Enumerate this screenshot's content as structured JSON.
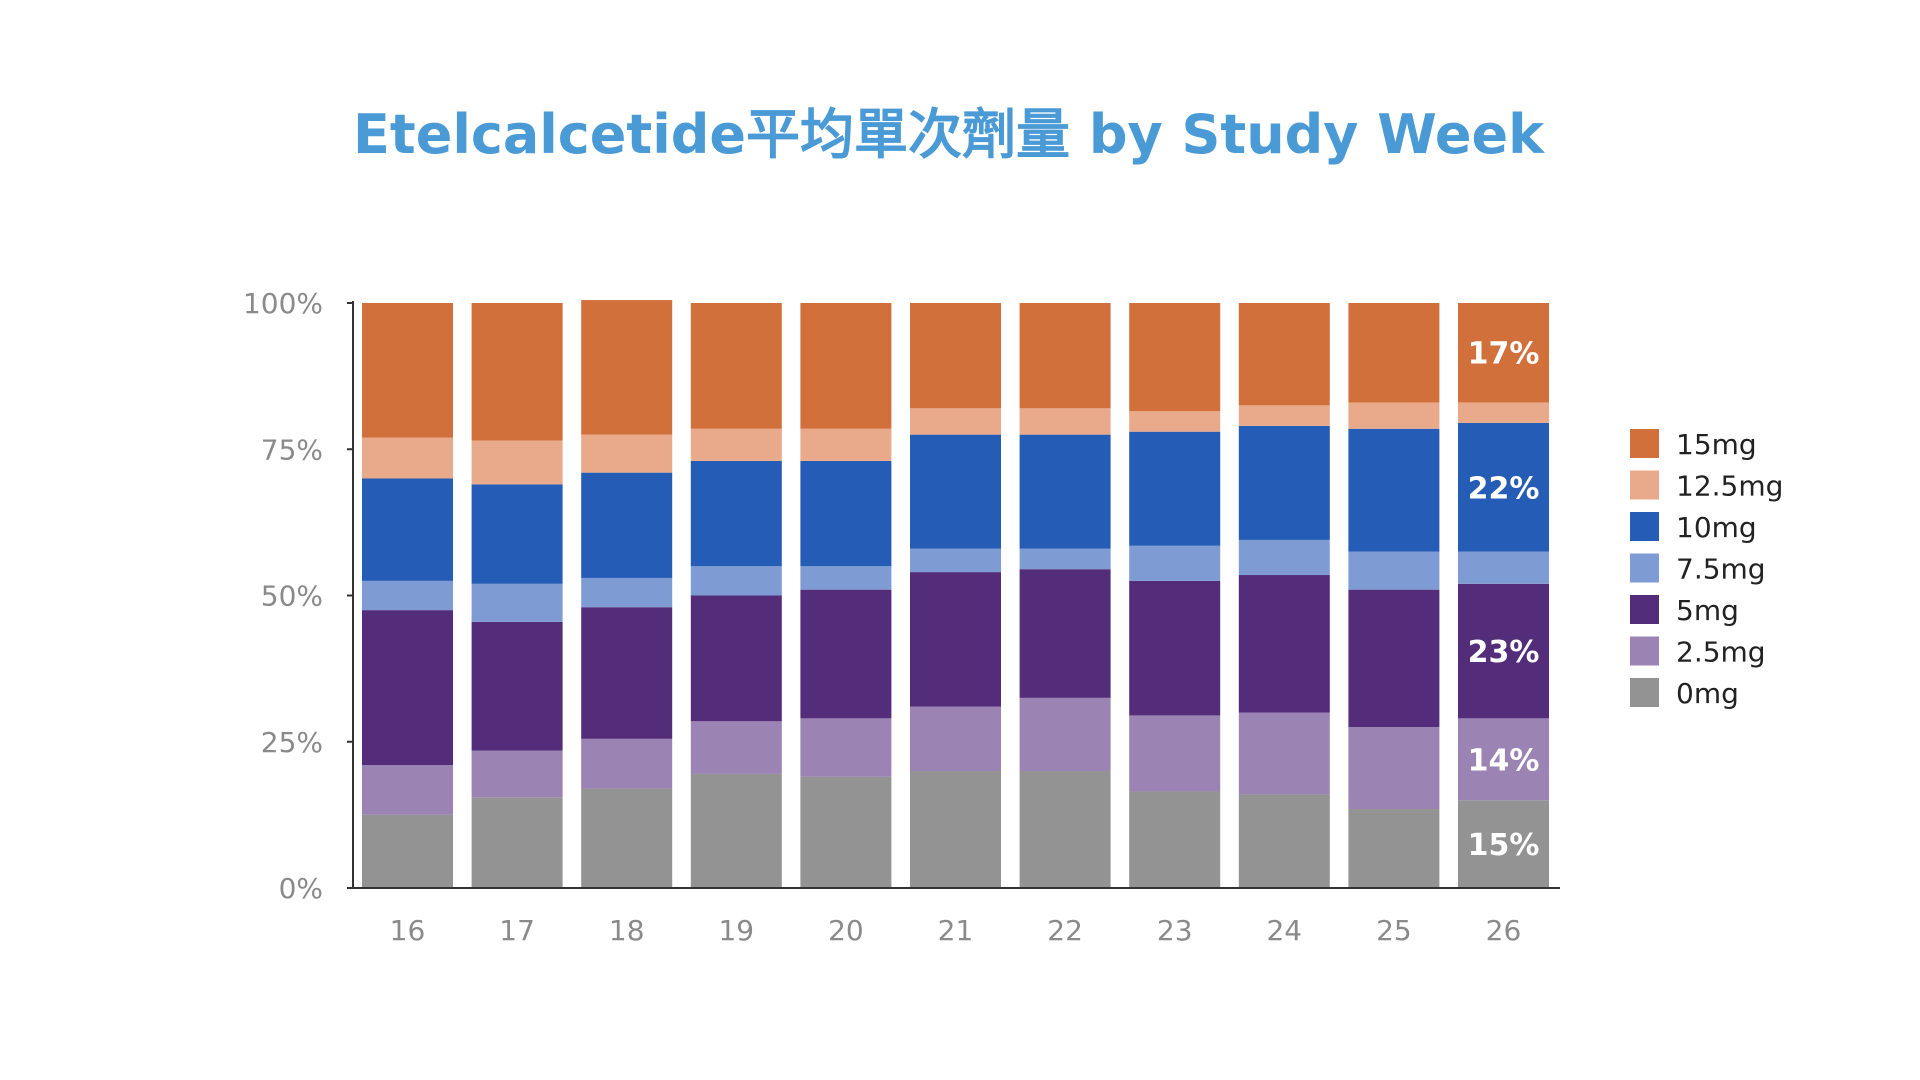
{
  "chart_data": {
    "type": "bar",
    "stacked": true,
    "normalized": true,
    "title": "Etelcalcetide平均單次劑量 by Study Week",
    "xlabel": "",
    "ylabel": "",
    "ylim": [
      0,
      100
    ],
    "y_ticks": [
      "0%",
      "25%",
      "50%",
      "75%",
      "100%"
    ],
    "categories": [
      "16",
      "17",
      "18",
      "19",
      "20",
      "21",
      "22",
      "23",
      "24",
      "25",
      "26"
    ],
    "legend_position": "right",
    "grid": false,
    "series": [
      {
        "name": "0mg",
        "color": "#939393",
        "values": [
          12.5,
          15.5,
          17,
          19.5,
          19,
          20,
          20,
          16.5,
          16,
          13.5,
          15
        ]
      },
      {
        "name": "2.5mg",
        "color": "#9b84b3",
        "values": [
          8.5,
          8,
          8.5,
          9,
          10,
          11,
          12.5,
          13,
          14,
          14,
          14
        ]
      },
      {
        "name": "5mg",
        "color": "#542d7a",
        "values": [
          26.5,
          22,
          22.5,
          21.5,
          22,
          23,
          22,
          23,
          23.5,
          23.5,
          23
        ]
      },
      {
        "name": "7.5mg",
        "color": "#7e9cd3",
        "values": [
          5,
          6.5,
          5,
          5,
          4,
          4,
          3.5,
          6,
          6,
          6.5,
          5.5
        ]
      },
      {
        "name": "10mg",
        "color": "#255cb6",
        "values": [
          17.5,
          17,
          18,
          18,
          18,
          19.5,
          19.5,
          19.5,
          19.5,
          21,
          22
        ]
      },
      {
        "name": "12.5mg",
        "color": "#e8aa8a",
        "values": [
          7,
          7.5,
          6.5,
          5.5,
          5.5,
          4.5,
          4.5,
          3.5,
          3.5,
          4.5,
          3.5
        ]
      },
      {
        "name": "15mg",
        "color": "#d2703c",
        "values": [
          23,
          23.5,
          23,
          21.5,
          21.5,
          18,
          18,
          18.5,
          17.5,
          17,
          17
        ]
      }
    ],
    "data_labels": [
      {
        "category": "26",
        "series": "0mg",
        "text": "15%"
      },
      {
        "category": "26",
        "series": "2.5mg",
        "text": "14%"
      },
      {
        "category": "26",
        "series": "5mg",
        "text": "23%"
      },
      {
        "category": "26",
        "series": "10mg",
        "text": "22%"
      },
      {
        "category": "26",
        "series": "15mg",
        "text": "17%"
      }
    ],
    "legend_order": [
      "15mg",
      "12.5mg",
      "10mg",
      "7.5mg",
      "5mg",
      "2.5mg",
      "0mg"
    ],
    "colors": {
      "title": "#4a9ad6",
      "tick": "#8a8a8a",
      "axis": "#333333",
      "legend_text": "#222222",
      "data_label": "#ffffff"
    }
  }
}
